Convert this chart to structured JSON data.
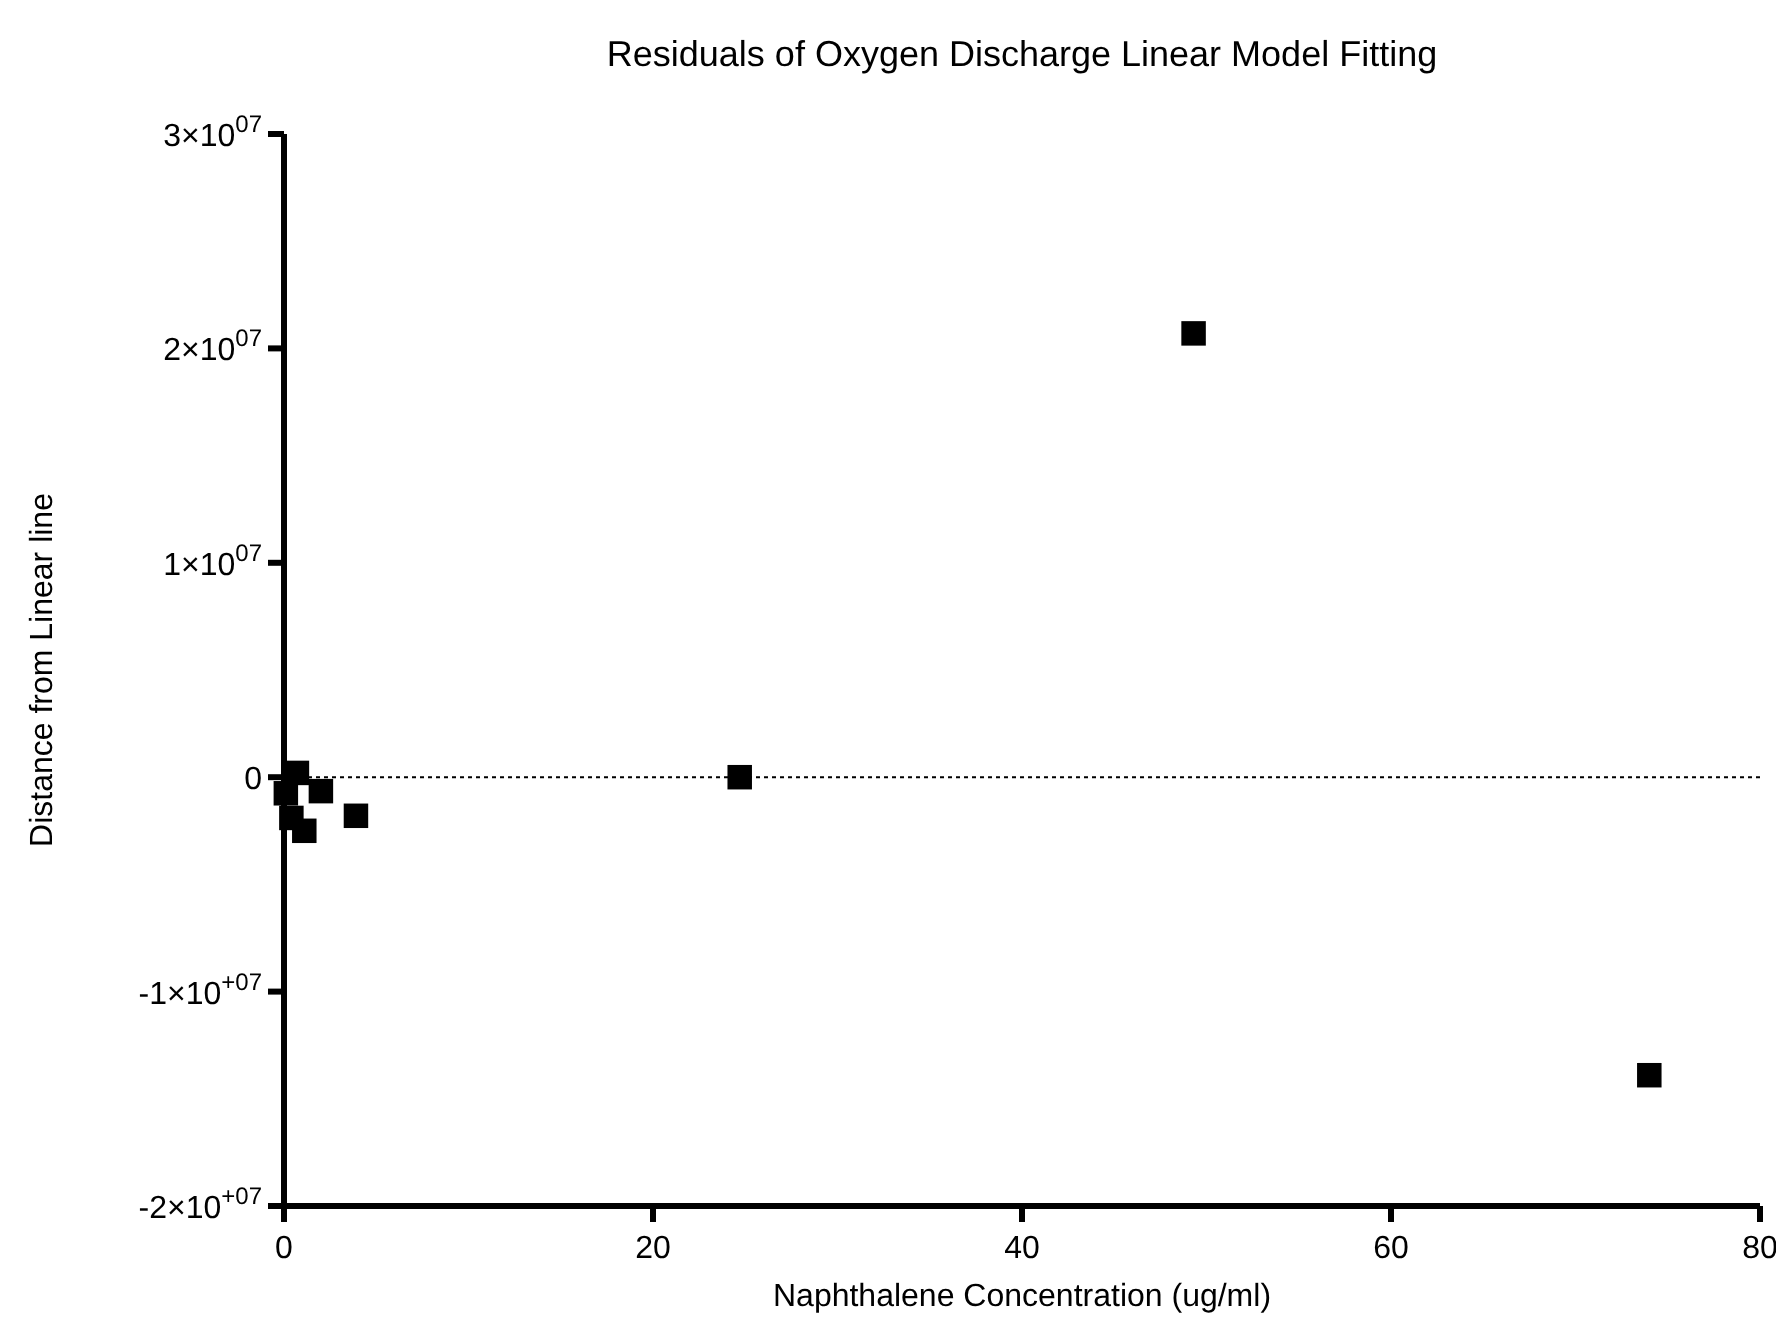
{
  "chart_data": {
    "type": "scatter",
    "title": "Residuals of Oxygen Discharge Linear Model Fitting",
    "xlabel": "Naphthalene Concentration (ug/ml)",
    "ylabel": "Distance from Linear line",
    "x": [
      0.1,
      0.4,
      0.7,
      1.1,
      2.0,
      3.9,
      24.7,
      49.3,
      74
    ],
    "values": [
      -750000,
      -1900000,
      200000,
      -2500000,
      -650000,
      -1800000,
      0,
      20700000,
      -13900000
    ],
    "color": "#000000",
    "marker": "square",
    "xlim": [
      0,
      80
    ],
    "xticks": [
      0,
      20,
      40,
      60,
      80
    ],
    "ylim": [
      -20000000,
      30000000
    ],
    "yticks": [
      {
        "value": -20000000,
        "label": "-2×10$^{+07}$"
      },
      {
        "value": -10000000,
        "label": "-1×10$^{+07}$"
      },
      {
        "value": 0,
        "label": "0"
      },
      {
        "value": 10000000,
        "label": "1×10$^{07}$"
      },
      {
        "value": 20000000,
        "label": "2×10$^{07}$"
      },
      {
        "value": 30000000,
        "label": "3×10$^{07}$"
      }
    ],
    "ref_lines": [
      {
        "axis": "y",
        "value": 0,
        "line_style": "dotted"
      }
    ],
    "grid": false
  }
}
